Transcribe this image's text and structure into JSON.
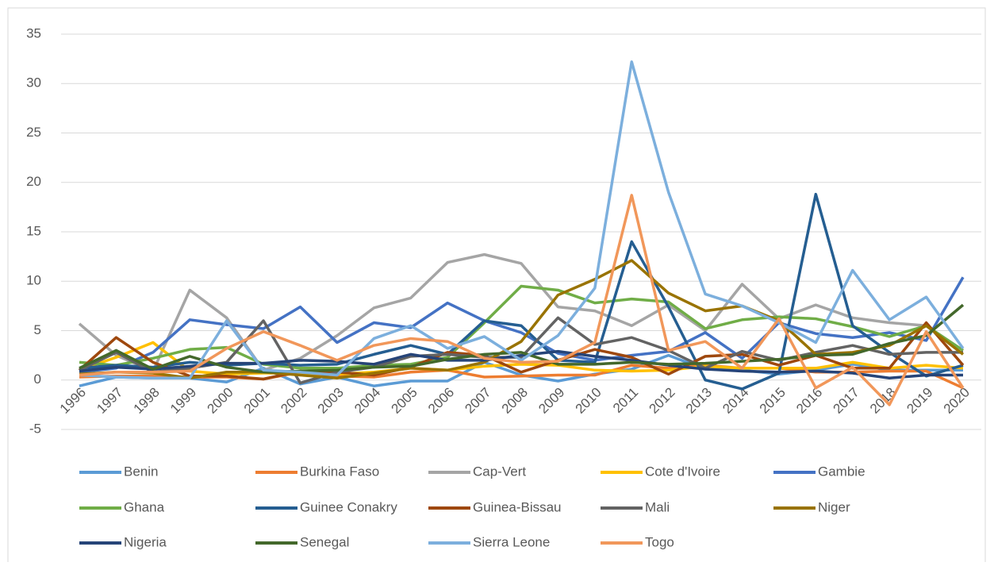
{
  "chart_data": {
    "type": "line",
    "categories": [
      "1996",
      "1997",
      "1998",
      "1999",
      "2000",
      "2001",
      "2002",
      "2003",
      "2004",
      "2005",
      "2006",
      "2007",
      "2008",
      "2009",
      "2010",
      "2011",
      "2012",
      "2013",
      "2014",
      "2015",
      "2016",
      "2017",
      "2018",
      "2019",
      "2020"
    ],
    "ylim": [
      -5,
      35
    ],
    "yticks": [
      -5,
      0,
      5,
      10,
      15,
      20,
      25,
      30,
      35
    ],
    "grid": true,
    "legend": "bottom",
    "series": [
      {
        "name": "Benin",
        "color": "#5b9bd5",
        "values": [
          -0.6,
          0.3,
          0.2,
          0.2,
          -0.2,
          1.2,
          -0.4,
          0.3,
          -0.6,
          -0.1,
          -0.1,
          1.8,
          0.5,
          -0.1,
          0.6,
          1.1,
          2.5,
          1.1,
          1.0,
          0.6,
          1.0,
          1.6,
          1.0,
          1.0,
          1.0
        ]
      },
      {
        "name": "Burkina Faso",
        "color": "#ed7d31",
        "values": [
          0.3,
          0.4,
          0.4,
          0.3,
          0.3,
          0.1,
          0.8,
          0.4,
          0.3,
          0.8,
          1.0,
          0.3,
          0.4,
          0.5,
          0.5,
          1.5,
          1.2,
          1.5,
          1.2,
          1.2,
          0.8,
          0.8,
          0.9,
          0.9,
          -0.8
        ]
      },
      {
        "name": "Cap-Vert",
        "color": "#a5a5a5",
        "values": [
          5.7,
          2.5,
          0.9,
          9.1,
          6.3,
          1.0,
          2.2,
          4.5,
          7.3,
          8.3,
          11.9,
          12.7,
          11.8,
          7.4,
          7.0,
          5.5,
          7.6,
          5.0,
          9.7,
          6.2,
          7.6,
          6.3,
          5.8,
          5.5,
          3.0
        ]
      },
      {
        "name": "Cote d'Ivoire",
        "color": "#ffc000",
        "values": [
          1.0,
          2.3,
          3.8,
          0.9,
          0.6,
          0.7,
          0.7,
          0.6,
          0.8,
          1.2,
          1.0,
          1.4,
          1.6,
          1.5,
          1.0,
          0.9,
          1.0,
          1.4,
          1.2,
          1.2,
          1.2,
          1.8,
          1.2,
          1.5,
          1.2
        ]
      },
      {
        "name": "Gambie",
        "color": "#4472c4",
        "values": [
          0.8,
          1.2,
          2.8,
          6.1,
          5.6,
          5.2,
          7.4,
          3.8,
          5.8,
          5.3,
          7.8,
          6.0,
          4.8,
          2.7,
          2.0,
          2.5,
          2.9,
          4.8,
          2.2,
          5.8,
          4.7,
          4.3,
          4.8,
          4.0,
          10.4
        ]
      },
      {
        "name": "Ghana",
        "color": "#70ad47",
        "values": [
          1.8,
          1.5,
          2.2,
          3.1,
          3.3,
          1.6,
          1.2,
          1.2,
          1.5,
          1.6,
          2.3,
          5.8,
          9.5,
          9.1,
          7.8,
          8.2,
          7.9,
          5.2,
          6.1,
          6.4,
          6.2,
          5.4,
          4.4,
          5.5,
          3.0
        ]
      },
      {
        "name": "Guinee Conakry",
        "color": "#255e91",
        "values": [
          1.2,
          1.5,
          1.3,
          1.8,
          1.5,
          1.7,
          1.5,
          1.6,
          2.6,
          3.5,
          2.6,
          6.0,
          5.5,
          2.0,
          1.8,
          14.0,
          7.4,
          0.0,
          -0.9,
          0.7,
          18.8,
          5.5,
          2.8,
          0.4,
          1.5
        ]
      },
      {
        "name": "Guinea-Bissau",
        "color": "#9e480e",
        "values": [
          1.0,
          4.3,
          1.8,
          0.4,
          0.4,
          0.1,
          0.9,
          0.8,
          0.5,
          1.3,
          2.8,
          2.5,
          0.8,
          2.0,
          3.1,
          2.3,
          0.6,
          2.4,
          2.6,
          1.5,
          2.5,
          1.2,
          1.2,
          5.8,
          1.5
        ]
      },
      {
        "name": "Mali",
        "color": "#636363",
        "values": [
          1.0,
          2.8,
          0.8,
          1.2,
          1.8,
          6.0,
          -0.3,
          0.8,
          1.3,
          2.4,
          2.6,
          2.3,
          2.3,
          6.3,
          3.6,
          4.3,
          3.0,
          1.2,
          2.9,
          2.0,
          2.8,
          3.5,
          2.6,
          2.8,
          2.8
        ]
      },
      {
        "name": "Niger",
        "color": "#997300",
        "values": [
          0.6,
          0.8,
          0.7,
          0.2,
          0.8,
          0.8,
          0.5,
          0.2,
          0.7,
          1.2,
          1.0,
          1.8,
          3.9,
          8.6,
          10.2,
          12.1,
          8.8,
          7.0,
          7.5,
          6.0,
          2.6,
          2.8,
          3.5,
          5.5,
          2.6
        ]
      },
      {
        "name": "Nigeria",
        "color": "#264478",
        "values": [
          0.9,
          1.3,
          1.1,
          1.4,
          1.7,
          1.7,
          2.0,
          1.9,
          1.6,
          2.6,
          2.0,
          2.0,
          2.5,
          2.9,
          2.4,
          2.0,
          1.5,
          1.1,
          0.9,
          0.8,
          0.9,
          0.7,
          0.2,
          0.5,
          0.5
        ]
      },
      {
        "name": "Senegal",
        "color": "#43682b",
        "values": [
          1.2,
          3.0,
          1.1,
          2.4,
          1.3,
          0.8,
          0.9,
          1.0,
          1.3,
          1.4,
          2.1,
          2.6,
          2.8,
          1.6,
          1.6,
          1.8,
          1.6,
          1.7,
          1.9,
          2.1,
          2.5,
          2.6,
          3.7,
          4.5,
          7.6
        ]
      },
      {
        "name": "Sierra Leone",
        "color": "#7cafdd",
        "values": [
          0.5,
          0.3,
          0.2,
          0.2,
          6.0,
          1.0,
          0.8,
          0.5,
          4.2,
          5.5,
          3.2,
          4.4,
          2.0,
          4.5,
          9.3,
          32.2,
          19.0,
          8.7,
          7.5,
          5.8,
          3.8,
          11.1,
          6.1,
          8.4,
          3.2
        ]
      },
      {
        "name": "Togo",
        "color": "#f1975a",
        "values": [
          0.5,
          0.8,
          0.8,
          0.9,
          3.2,
          4.9,
          3.5,
          2.0,
          3.5,
          4.2,
          3.9,
          2.2,
          1.8,
          1.9,
          3.8,
          18.7,
          3.0,
          3.9,
          1.2,
          6.2,
          -0.8,
          1.3,
          -2.5,
          4.9,
          -0.8
        ]
      }
    ]
  }
}
